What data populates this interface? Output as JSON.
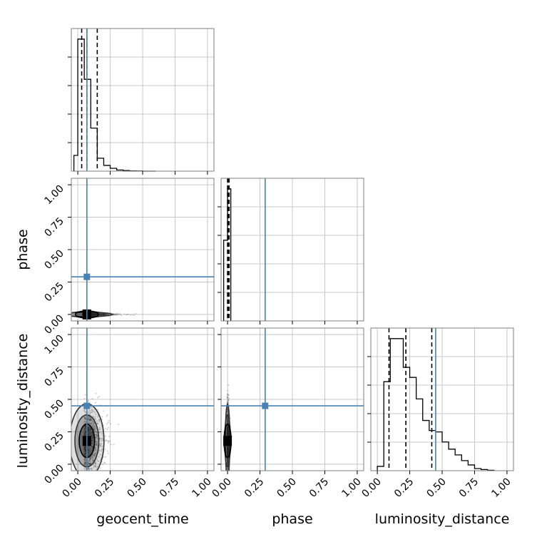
{
  "chart_data": {
    "type": "corner",
    "parameters": [
      "geocent_time",
      "phase",
      "luminosity_distance"
    ],
    "x_tick_labels": [
      "0.00",
      "0.25",
      "0.50",
      "0.75",
      "1.00"
    ],
    "y_tick_labels": [
      "0.00",
      "0.25",
      "0.50",
      "0.75",
      "1.00"
    ],
    "range": [
      -0.05,
      1.05
    ],
    "truth": {
      "geocent_time": 0.07,
      "phase": 0.29,
      "luminosity_distance": 0.45
    },
    "colors": {
      "truth": "#4682b4",
      "hist": "#000000",
      "grid": "#c8c8c8",
      "scatter": "#555555"
    },
    "grid": true,
    "diagonal": [
      {
        "parameter": "geocent_time",
        "bin_edges": [
          -0.03,
          0.0,
          0.05,
          0.1,
          0.15,
          0.2,
          0.25,
          0.3,
          0.35,
          0.4,
          0.45,
          0.5,
          0.55,
          0.6
        ],
        "counts": [
          0.11,
          0.92,
          0.64,
          0.3,
          0.09,
          0.04,
          0.02,
          0.008,
          0.004,
          0.002,
          0.001,
          0.0,
          0.0
        ],
        "quantiles": [
          0.03,
          0.07,
          0.15
        ]
      },
      {
        "parameter": "phase",
        "bin_edges": [
          -0.03,
          0.0,
          0.025
        ],
        "counts": [
          0.55,
          0.9
        ],
        "quantiles": [
          0.0,
          0.005,
          0.012
        ]
      },
      {
        "parameter": "luminosity_distance",
        "bin_edges": [
          0.0,
          0.05,
          0.1,
          0.15,
          0.2,
          0.25,
          0.3,
          0.35,
          0.4,
          0.45,
          0.5,
          0.55,
          0.6,
          0.65,
          0.7,
          0.75,
          0.8,
          0.85,
          0.9
        ],
        "counts": [
          0.03,
          0.62,
          0.92,
          0.92,
          0.72,
          0.65,
          0.5,
          0.35,
          0.28,
          0.27,
          0.2,
          0.15,
          0.11,
          0.07,
          0.04,
          0.015,
          0.008,
          0.003
        ],
        "quantiles": [
          0.09,
          0.22,
          0.42
        ]
      }
    ],
    "pairs": [
      {
        "x": "geocent_time",
        "y": "phase",
        "center": [
          0.07,
          0.0
        ],
        "spread": [
          0.09,
          0.004
        ]
      },
      {
        "x": "geocent_time",
        "y": "luminosity_distance",
        "center": [
          0.07,
          0.18
        ],
        "spread": [
          0.06,
          0.13
        ]
      },
      {
        "x": "phase",
        "y": "luminosity_distance",
        "center": [
          0.0,
          0.18
        ],
        "spread": [
          0.006,
          0.13
        ]
      }
    ]
  }
}
